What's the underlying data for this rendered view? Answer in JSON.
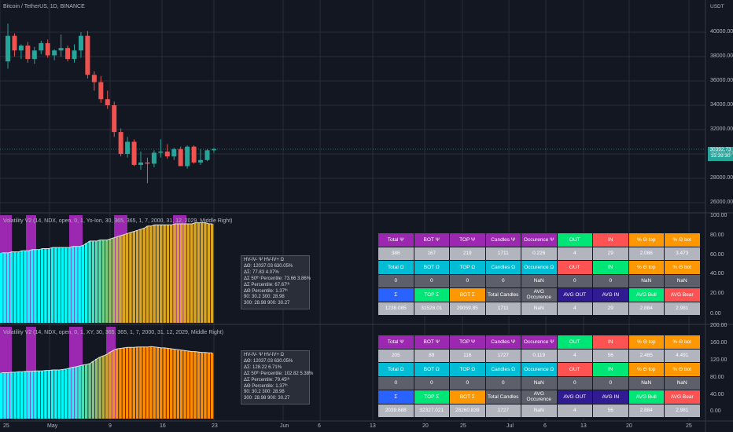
{
  "chart": {
    "symbol_title": "Bitcoin / TetherUS, 1D, BINANCE",
    "currency": "USDT",
    "price_badge": "30392.73",
    "price_badge_time": "15:39:30",
    "price_axis": [
      "40000.00",
      "38000.00",
      "36000.00",
      "34000.00",
      "32000.00",
      "30000.00",
      "28000.00",
      "26000.00"
    ],
    "time_axis": [
      "25",
      "May",
      "9",
      "16",
      "23",
      "Jun",
      "6",
      "13",
      "20",
      "25",
      "Jul",
      "6",
      "13",
      "20",
      "25"
    ],
    "candles": [
      {
        "o": 37600,
        "h": 40700,
        "l": 37000,
        "c": 39700
      },
      {
        "o": 39700,
        "h": 39900,
        "l": 38000,
        "c": 38500
      },
      {
        "o": 38500,
        "h": 39000,
        "l": 37800,
        "c": 38900
      },
      {
        "o": 38900,
        "h": 39200,
        "l": 37500,
        "c": 37800
      },
      {
        "o": 37800,
        "h": 38800,
        "l": 37400,
        "c": 38500
      },
      {
        "o": 38500,
        "h": 39300,
        "l": 38200,
        "c": 39100
      },
      {
        "o": 39100,
        "h": 39400,
        "l": 37900,
        "c": 38100
      },
      {
        "o": 38100,
        "h": 38600,
        "l": 37700,
        "c": 38500
      },
      {
        "o": 38500,
        "h": 39800,
        "l": 38000,
        "c": 38700
      },
      {
        "o": 38700,
        "h": 38900,
        "l": 37600,
        "c": 37800
      },
      {
        "o": 37800,
        "h": 39000,
        "l": 37500,
        "c": 38500
      },
      {
        "o": 38500,
        "h": 40000,
        "l": 37900,
        "c": 39700
      },
      {
        "o": 39700,
        "h": 40100,
        "l": 36200,
        "c": 36500
      },
      {
        "o": 36500,
        "h": 36800,
        "l": 35200,
        "c": 35900
      },
      {
        "o": 35900,
        "h": 36400,
        "l": 34200,
        "c": 34500
      },
      {
        "o": 34500,
        "h": 35200,
        "l": 33700,
        "c": 34000
      },
      {
        "o": 34000,
        "h": 34300,
        "l": 31400,
        "c": 31800
      },
      {
        "o": 31800,
        "h": 32100,
        "l": 29800,
        "c": 30000
      },
      {
        "o": 30000,
        "h": 31400,
        "l": 29700,
        "c": 31000
      },
      {
        "o": 31000,
        "h": 31200,
        "l": 29000,
        "c": 29100
      },
      {
        "o": 29100,
        "h": 30200,
        "l": 28700,
        "c": 29300
      },
      {
        "o": 29300,
        "h": 29700,
        "l": 27600,
        "c": 29200
      },
      {
        "o": 29200,
        "h": 30300,
        "l": 28900,
        "c": 30100
      },
      {
        "o": 30100,
        "h": 31200,
        "l": 29700,
        "c": 30200
      },
      {
        "o": 30200,
        "h": 30800,
        "l": 29600,
        "c": 29800
      },
      {
        "o": 29800,
        "h": 30500,
        "l": 29500,
        "c": 30400
      },
      {
        "o": 30400,
        "h": 30600,
        "l": 29000,
        "c": 29000
      },
      {
        "o": 29000,
        "h": 30700,
        "l": 28800,
        "c": 30600
      },
      {
        "o": 30600,
        "h": 30700,
        "l": 29200,
        "c": 29300
      },
      {
        "o": 29300,
        "h": 30400,
        "l": 29100,
        "c": 29500
      },
      {
        "o": 29500,
        "h": 30400,
        "l": 29400,
        "c": 30300
      },
      {
        "o": 30300,
        "h": 30500,
        "l": 30100,
        "c": 30400
      }
    ]
  },
  "panel1": {
    "title": "Volatility V2 (14, NDX, open, 0, 1, Yo-Ion, 30, 365, 365, 1, 7, 2000, 31, 12, 2029, Middle Right)",
    "axis": [
      "100.00",
      "80.00",
      "60.00",
      "40.00",
      "20.00",
      "0.00"
    ],
    "tooltip": [
      "HV-IV- Ψ  HV-IV+ Ω",
      "ΔΘ: 12037.03  630.05%",
      "ΔΣ: 77.83  4.07%",
      "ΔΣ 50ᵗʰ Percentile: 73.66  3.86%",
      "ΔΣ Percentile: 67.67ᵗʰ",
      "ΔΘ Percentile: 1.37ᵗʰ",
      "90: 30.2  300: 28.98",
      "300: 28.98  900: 30.27"
    ],
    "table": [
      [
        {
          "t": "Total Ψ",
          "c": "purple"
        },
        {
          "t": "BOT Ψ",
          "c": "purple"
        },
        {
          "t": "TOP Ψ",
          "c": "purple"
        },
        {
          "t": "Candles Ψ",
          "c": "purple"
        },
        {
          "t": "Occurence Ψ",
          "c": "purple"
        },
        {
          "t": "OUT",
          "c": "green"
        },
        {
          "t": "IN",
          "c": "red"
        },
        {
          "t": "% Θ top",
          "c": "orange"
        },
        {
          "t": "% Θ bot",
          "c": "orange"
        }
      ],
      [
        {
          "t": "386",
          "c": "lgray"
        },
        {
          "t": "167",
          "c": "lgray"
        },
        {
          "t": "219",
          "c": "lgray"
        },
        {
          "t": "1711",
          "c": "lgray"
        },
        {
          "t": "0.226",
          "c": "lgray"
        },
        {
          "t": "4",
          "c": "lgray"
        },
        {
          "t": "29",
          "c": "lgray"
        },
        {
          "t": "2.086",
          "c": "lgray"
        },
        {
          "t": "3.473",
          "c": "lgray"
        }
      ],
      [
        {
          "t": "Total Ω",
          "c": "cyan"
        },
        {
          "t": "BOT Ω",
          "c": "cyan"
        },
        {
          "t": "TOP Ω",
          "c": "cyan"
        },
        {
          "t": "Candles Ω",
          "c": "cyan"
        },
        {
          "t": "Occurence Ω",
          "c": "cyan"
        },
        {
          "t": "OUT",
          "c": "red"
        },
        {
          "t": "IN",
          "c": "green"
        },
        {
          "t": "% Θ top",
          "c": "orange"
        },
        {
          "t": "% Θ bot",
          "c": "orange"
        }
      ],
      [
        {
          "t": "0",
          "c": "gray"
        },
        {
          "t": "0",
          "c": "gray"
        },
        {
          "t": "0",
          "c": "gray"
        },
        {
          "t": "0",
          "c": "gray"
        },
        {
          "t": "NaN",
          "c": "gray"
        },
        {
          "t": "0",
          "c": "gray"
        },
        {
          "t": "0",
          "c": "gray"
        },
        {
          "t": "NaN",
          "c": "gray"
        },
        {
          "t": "NaN",
          "c": "gray"
        }
      ],
      [
        {
          "t": "Σ",
          "c": "blue"
        },
        {
          "t": "TOP Σ",
          "c": "green"
        },
        {
          "t": "BOT Σ",
          "c": "orange"
        },
        {
          "t": "Total Candles",
          "c": "gray"
        },
        {
          "t": "AVG Occurence",
          "c": "gray"
        },
        {
          "t": "AVG OUT",
          "c": "navy"
        },
        {
          "t": "AVG IN",
          "c": "navy"
        },
        {
          "t": "AVG Bull",
          "c": "green"
        },
        {
          "t": "AVG Bear",
          "c": "red"
        }
      ],
      [
        {
          "t": "1238.085",
          "c": "lgray"
        },
        {
          "t": "31528.01",
          "c": "lgray"
        },
        {
          "t": "29059.85",
          "c": "lgray"
        },
        {
          "t": "1711",
          "c": "lgray"
        },
        {
          "t": "NaN",
          "c": "lgray"
        },
        {
          "t": "4",
          "c": "lgray"
        },
        {
          "t": "29",
          "c": "lgray"
        },
        {
          "t": "2.884",
          "c": "lgray"
        },
        {
          "t": "2.981",
          "c": "lgray"
        }
      ]
    ],
    "values": [
      65,
      65,
      65,
      66,
      66,
      66,
      67,
      67,
      67,
      68,
      68,
      68,
      69,
      69,
      69,
      70,
      70,
      70,
      70,
      70,
      70,
      71,
      71,
      71,
      72,
      74,
      76,
      76,
      76,
      77,
      77,
      77,
      78,
      79,
      80,
      81,
      82,
      83,
      84,
      85,
      86,
      87,
      88,
      90,
      90,
      91,
      91,
      91,
      91,
      91,
      91,
      92,
      92,
      92,
      92,
      92,
      92,
      93,
      93,
      93,
      93,
      92,
      92
    ]
  },
  "panel2": {
    "title": "Volatility V2 (14, NDX, open, 0, 1, XY, 30, 365, 365, 1, 7, 2000, 31, 12, 2029, Middle Right)",
    "axis": [
      "200.00",
      "160.00",
      "120.00",
      "80.00",
      "40.00",
      "0.00"
    ],
    "tooltip": [
      "HV-IV- Ψ  HV-IV+ Ω",
      "ΔΘ: 12037.03  630.05%",
      "ΔΣ: 128.22  6.71%",
      "ΔΣ 50ᵗʰ Percentile: 102.82  5.38%",
      "ΔΣ Percentile: 79.45ᵗʰ",
      "ΔΘ Percentile: 1.37ᵗʰ",
      "90: 30.2  300: 28.98",
      "300: 28.98  900: 30.27"
    ],
    "table": [
      [
        {
          "t": "Total Ψ",
          "c": "purple"
        },
        {
          "t": "BOT Ψ",
          "c": "purple"
        },
        {
          "t": "TOP Ψ",
          "c": "purple"
        },
        {
          "t": "Candles Ψ",
          "c": "purple"
        },
        {
          "t": "Occurence Ψ",
          "c": "purple"
        },
        {
          "t": "OUT",
          "c": "green"
        },
        {
          "t": "IN",
          "c": "red"
        },
        {
          "t": "% Θ top",
          "c": "orange"
        },
        {
          "t": "% Θ bot",
          "c": "orange"
        }
      ],
      [
        {
          "t": "205",
          "c": "lgray"
        },
        {
          "t": "89",
          "c": "lgray"
        },
        {
          "t": "116",
          "c": "lgray"
        },
        {
          "t": "1727",
          "c": "lgray"
        },
        {
          "t": "0.119",
          "c": "lgray"
        },
        {
          "t": "4",
          "c": "lgray"
        },
        {
          "t": "56",
          "c": "lgray"
        },
        {
          "t": "2.485",
          "c": "lgray"
        },
        {
          "t": "4.491",
          "c": "lgray"
        }
      ],
      [
        {
          "t": "Total Ω",
          "c": "cyan"
        },
        {
          "t": "BOT Ω",
          "c": "cyan"
        },
        {
          "t": "TOP Ω",
          "c": "cyan"
        },
        {
          "t": "Candles Ω",
          "c": "cyan"
        },
        {
          "t": "Occurence Ω",
          "c": "cyan"
        },
        {
          "t": "OUT",
          "c": "red"
        },
        {
          "t": "IN",
          "c": "green"
        },
        {
          "t": "% Θ top",
          "c": "orange"
        },
        {
          "t": "% Θ bot",
          "c": "orange"
        }
      ],
      [
        {
          "t": "0",
          "c": "gray"
        },
        {
          "t": "0",
          "c": "gray"
        },
        {
          "t": "0",
          "c": "gray"
        },
        {
          "t": "0",
          "c": "gray"
        },
        {
          "t": "NaN",
          "c": "gray"
        },
        {
          "t": "0",
          "c": "gray"
        },
        {
          "t": "0",
          "c": "gray"
        },
        {
          "t": "NaN",
          "c": "gray"
        },
        {
          "t": "NaN",
          "c": "gray"
        }
      ],
      [
        {
          "t": "Σ",
          "c": "blue"
        },
        {
          "t": "TOP Σ",
          "c": "green"
        },
        {
          "t": "BOT Σ",
          "c": "orange"
        },
        {
          "t": "Total Candles",
          "c": "gray"
        },
        {
          "t": "AVG Occurence",
          "c": "gray"
        },
        {
          "t": "AVG OUT",
          "c": "navy"
        },
        {
          "t": "AVG IN",
          "c": "navy"
        },
        {
          "t": "AVG Bull",
          "c": "green"
        },
        {
          "t": "AVG Bear",
          "c": "red"
        }
      ],
      [
        {
          "t": "2039.688",
          "c": "lgray"
        },
        {
          "t": "32327.021",
          "c": "lgray"
        },
        {
          "t": "28260.839",
          "c": "lgray"
        },
        {
          "t": "1727",
          "c": "lgray"
        },
        {
          "t": "NaN",
          "c": "lgray"
        },
        {
          "t": "4",
          "c": "lgray"
        },
        {
          "t": "56",
          "c": "lgray"
        },
        {
          "t": "2.884",
          "c": "lgray"
        },
        {
          "t": "2.981",
          "c": "lgray"
        }
      ]
    ],
    "values": [
      100,
      100,
      100,
      101,
      101,
      102,
      102,
      103,
      103,
      103,
      104,
      104,
      104,
      105,
      105,
      106,
      106,
      106,
      107,
      108,
      110,
      112,
      113,
      115,
      117,
      118,
      120,
      125,
      130,
      134,
      137,
      140,
      145,
      149,
      152,
      153,
      154,
      155,
      155,
      155,
      156,
      156,
      156,
      156,
      157,
      156,
      155,
      154,
      154,
      153,
      152,
      151,
      150,
      149,
      148,
      147,
      146,
      146,
      145,
      144,
      144,
      143,
      143
    ]
  },
  "colors": {
    "up": "#26a69a",
    "down": "#ef5350",
    "psi": "#9c27b0",
    "cyan": "#00ffff",
    "gold": "#daa520",
    "orange": "#ff8c00",
    "grid": "#2a2e39"
  }
}
